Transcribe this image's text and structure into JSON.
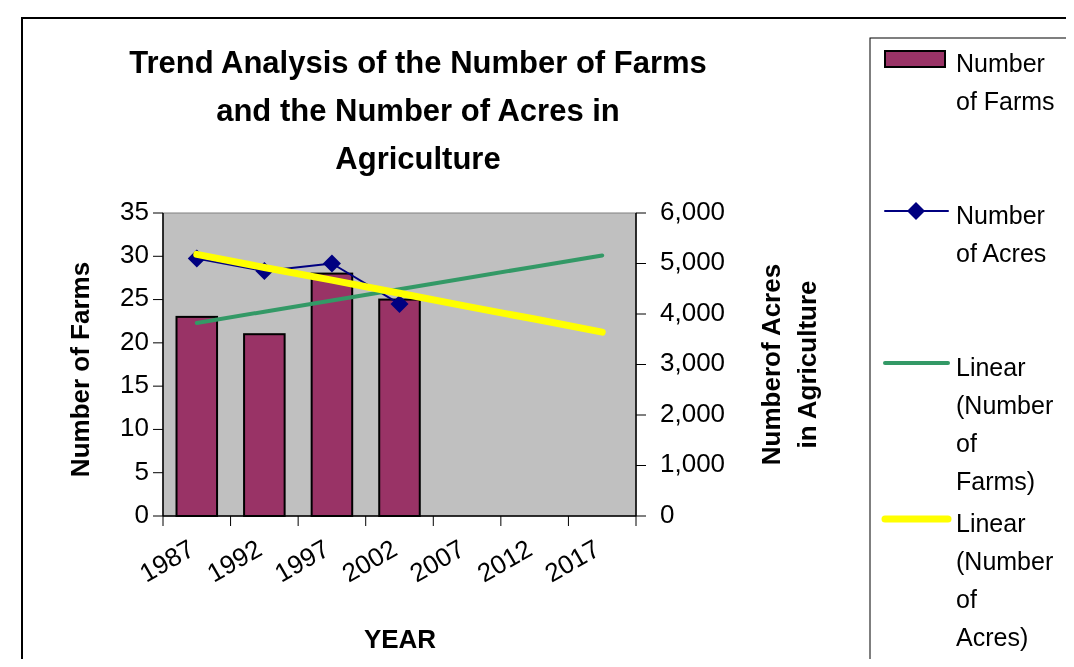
{
  "chart_data": {
    "type": "bar",
    "title": "Trend Analysis of the Number of Farms and the Number of Acres in Agriculture",
    "xlabel": "YEAR",
    "ylabel": "Number of Farms",
    "y2label": "Numberof Acres in Agriculture",
    "categories": [
      "1987",
      "1992",
      "1997",
      "2002",
      "2007",
      "2012",
      "2017"
    ],
    "series": [
      {
        "name": "Number of Farms",
        "color": "#993366",
        "values": [
          23,
          21,
          28,
          25,
          null,
          null,
          null
        ]
      },
      {
        "name": "Number of Acres",
        "type": "line",
        "axis": "y2",
        "marker": "diamond",
        "color": "#000080",
        "values": [
          5100,
          4850,
          5000,
          4200,
          null,
          null,
          null
        ]
      },
      {
        "name": "Linear (Number of Farms)",
        "type": "line",
        "color": "#339966",
        "values": [
          22.3,
          23.6,
          24.9,
          26.2,
          27.5,
          28.8,
          30.1
        ]
      },
      {
        "name": "Linear (Number of Acres)",
        "type": "line",
        "axis": "y2",
        "color": "#ffff00",
        "values": [
          5180,
          4920,
          4670,
          4410,
          4150,
          3900,
          3640
        ]
      }
    ],
    "ylim": [
      0,
      35
    ],
    "yticks": [
      0,
      5,
      10,
      15,
      20,
      25,
      30,
      35
    ],
    "y2lim": [
      0,
      6000
    ],
    "y2ticks": [
      0,
      {
        "value": 1000,
        "label": "1,000"
      },
      {
        "value": 2000,
        "label": "2,000"
      },
      {
        "value": 3000,
        "label": "3,000"
      },
      {
        "value": 4000,
        "label": "4,000"
      },
      {
        "value": 5000,
        "label": "5,000"
      },
      {
        "value": 6000,
        "label": "6,000"
      }
    ],
    "grid": false,
    "legend": "right"
  }
}
